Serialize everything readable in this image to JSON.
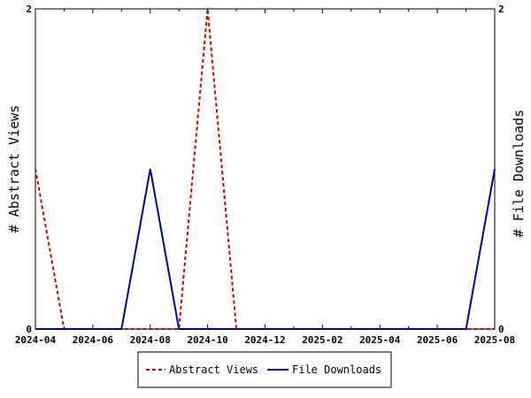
{
  "chart_data": {
    "type": "line",
    "x": [
      "2024-04",
      "2024-05",
      "2024-06",
      "2024-07",
      "2024-08",
      "2024-09",
      "2024-10",
      "2024-11",
      "2024-12",
      "2025-01",
      "2025-02",
      "2025-03",
      "2025-04",
      "2025-05",
      "2025-06",
      "2025-07",
      "2025-08"
    ],
    "x_tick_labels": [
      "2024-04",
      "2024-06",
      "2024-08",
      "2024-10",
      "2024-12",
      "2025-02",
      "2025-04",
      "2025-06",
      "2025-08"
    ],
    "y_left_label": "# Abstract Views",
    "y_right_label": "# File Downloads",
    "y_left_ticks": [
      "0",
      "2"
    ],
    "y_right_ticks": [
      "0",
      "2"
    ],
    "ylim_left": [
      0,
      2
    ],
    "ylim_right": [
      0,
      2
    ],
    "grid": false,
    "legend_position": "bottom",
    "series": [
      {
        "name": "Abstract Views",
        "axis": "left",
        "color": "#cc0000",
        "dash": true,
        "values": [
          1,
          0,
          0,
          0,
          0,
          0,
          2,
          0,
          0,
          0,
          0,
          0,
          0,
          0,
          0,
          0,
          0
        ]
      },
      {
        "name": "File Downloads",
        "axis": "right",
        "color": "#0000aa",
        "dash": false,
        "values": [
          0,
          0,
          0,
          0,
          1,
          0,
          0,
          0,
          0,
          0,
          0,
          0,
          0,
          0,
          0,
          0,
          1
        ]
      }
    ]
  }
}
